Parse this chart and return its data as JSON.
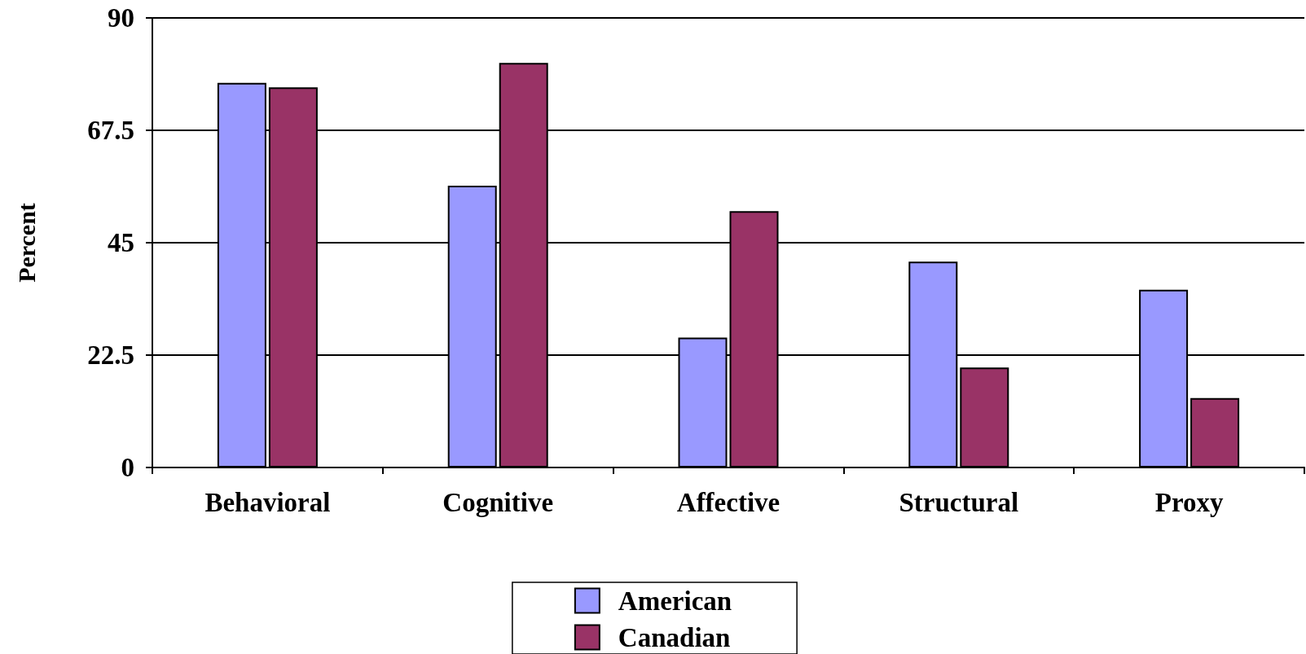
{
  "chart_data": {
    "type": "bar",
    "ylabel": "Percent",
    "categories": [
      "Behavioral",
      "Cognitive",
      "Affective",
      "Structural",
      "Proxy"
    ],
    "series": [
      {
        "name": "American",
        "color": "#9999ff",
        "values": [
          77,
          56.4,
          26,
          41.2,
          35.6
        ]
      },
      {
        "name": "Canadian",
        "color": "#993366",
        "values": [
          76.1,
          81,
          51.3,
          20,
          13.9
        ]
      }
    ],
    "ylim": [
      0,
      90
    ],
    "yticks": [
      0,
      22.5,
      45,
      67.5,
      90
    ],
    "grid": "y",
    "legend": "bottom"
  }
}
